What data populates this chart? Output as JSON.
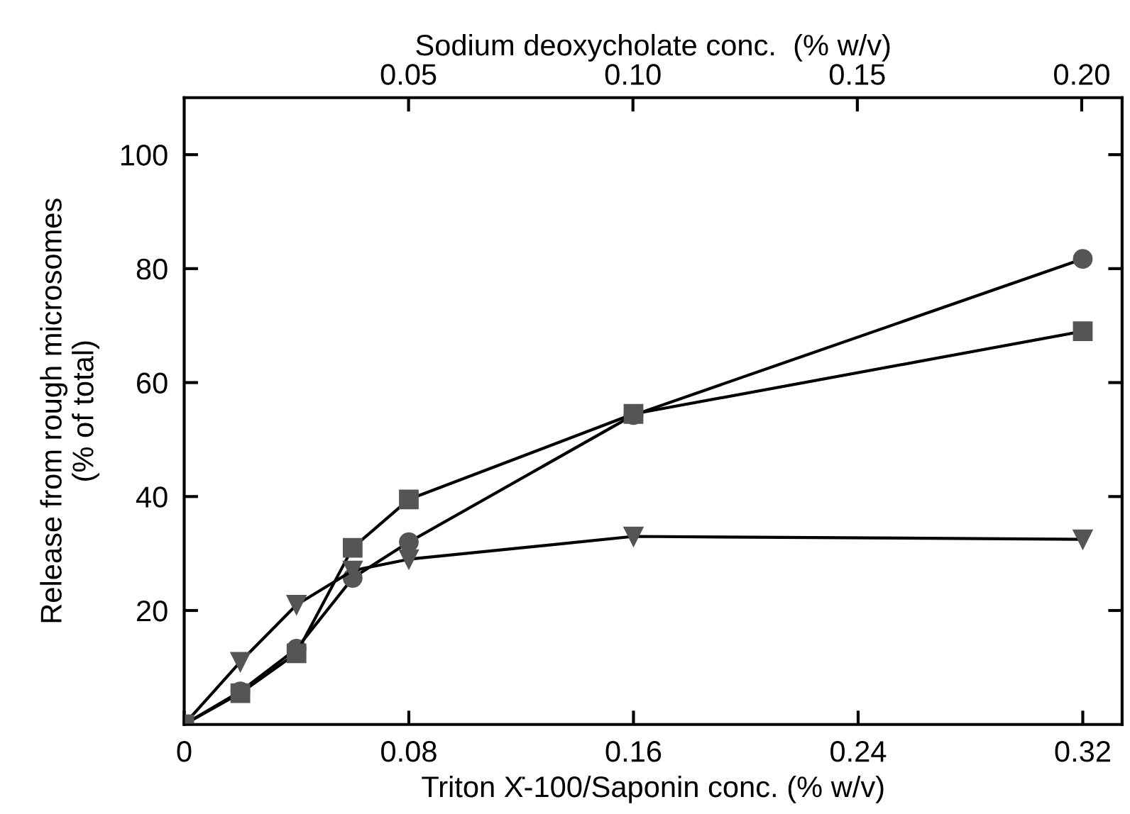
{
  "chart_data": {
    "type": "line",
    "xlabel": "Triton Ẋ-100/Saponin conc. (% w/v)",
    "x2label": "Sodium deoxycholate conc.  (% w/v)",
    "ylabel": "Release from rough microsomes\n(% of total)",
    "x": [
      0,
      0.02,
      0.04,
      0.06,
      0.08,
      0.16,
      0.32
    ],
    "series": [
      {
        "color": "#555555",
        "marker": "circle",
        "values": [
          0,
          5.8,
          13.3,
          25.7,
          32,
          54.3,
          81.7
        ]
      },
      {
        "color": "#555555",
        "marker": "square",
        "values": [
          0,
          5.5,
          12.5,
          31,
          39.5,
          54.5,
          69
        ]
      },
      {
        "color": "#555555",
        "marker": "triangle",
        "values": [
          0,
          11,
          21,
          27,
          29,
          33,
          32.5
        ]
      }
    ],
    "xlim": [
      0,
      0.334
    ],
    "xticks": [
      0,
      0.08,
      0.16,
      0.24,
      0.32
    ],
    "x2lim": [
      0,
      0.209
    ],
    "x2ticks": [
      0.05,
      {
        "value": 0.1,
        "label": "0.10"
      },
      0.15,
      {
        "value": 0.2,
        "label": "0.20"
      }
    ],
    "ylim": [
      0,
      110
    ],
    "yticks": [
      20,
      40,
      60,
      80,
      100
    ],
    "grid": false,
    "legend": false,
    "line_style": "solid"
  }
}
